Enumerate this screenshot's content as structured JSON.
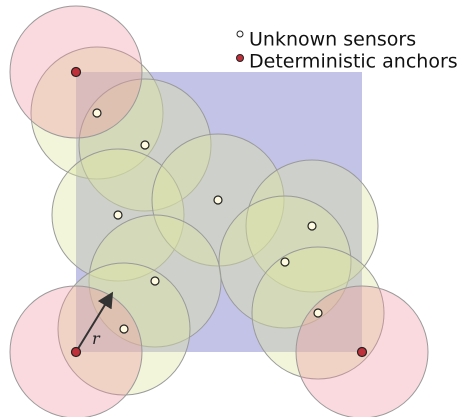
{
  "legend": [
    "Unknown sensors",
    "Deterministic anchors"
  ],
  "annotation": "r"
}
